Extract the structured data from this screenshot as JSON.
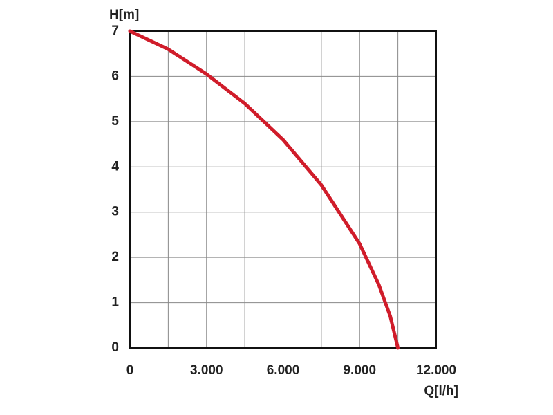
{
  "chart_data": {
    "type": "line",
    "xlabel": "Q[l/h]",
    "ylabel": "H[m]",
    "x": [
      0,
      1500,
      3000,
      4500,
      6000,
      7500,
      9000,
      9750,
      10200,
      10500
    ],
    "series": [
      {
        "name": "H",
        "color": "#d01c2a",
        "values": [
          7,
          6.6,
          6.05,
          5.4,
          4.6,
          3.6,
          2.3,
          1.4,
          0.7,
          0
        ]
      }
    ],
    "xlim": [
      0,
      12000
    ],
    "xticks": [
      0,
      {
        "value": 3000,
        "label": "3.000"
      },
      {
        "value": 6000,
        "label": "6.000"
      },
      {
        "value": 9000,
        "label": "9.000"
      },
      {
        "value": 12000,
        "label": "12.000"
      }
    ],
    "xminor": [
      1500,
      4500,
      7500,
      10500
    ],
    "ylim": [
      0,
      7
    ],
    "yticks": [
      0,
      1,
      2,
      3,
      4,
      5,
      6,
      7
    ],
    "grid": true
  }
}
